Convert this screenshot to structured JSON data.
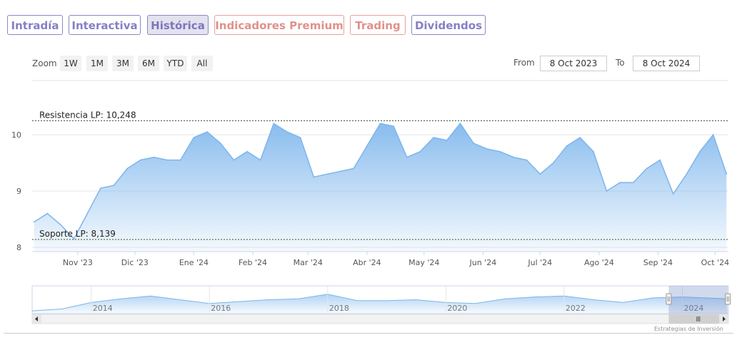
{
  "tabs": [
    {
      "label": "Intradía",
      "style": "normal"
    },
    {
      "label": "Interactiva",
      "style": "normal"
    },
    {
      "label": "Histórica",
      "style": "active"
    },
    {
      "label": "Indicadores Premium",
      "style": "premium"
    },
    {
      "label": "Trading",
      "style": "premium"
    },
    {
      "label": "Dividendos",
      "style": "normal"
    }
  ],
  "zoom": {
    "label": "Zoom",
    "buttons": [
      "1W",
      "1M",
      "3M",
      "6M",
      "YTD",
      "All"
    ]
  },
  "range": {
    "from_label": "From",
    "from_value": "8 Oct 2023",
    "to_label": "To",
    "to_value": "8 Oct 2024"
  },
  "credits": "Estrategias de Inversión",
  "colors": {
    "line": "#7cb5ec",
    "area_top": "#7cb5ec",
    "tab_border": "#8b87c4",
    "premium_border": "#e8a19c",
    "level_line": "#2f4f2f"
  },
  "chart_data": {
    "type": "area",
    "x": [
      "2023-10-09",
      "2023-10-16",
      "2023-10-23",
      "2023-10-30",
      "2023-11-06",
      "2023-11-13",
      "2023-11-20",
      "2023-11-27",
      "2023-12-04",
      "2023-12-11",
      "2023-12-18",
      "2023-12-25",
      "2024-01-01",
      "2024-01-08",
      "2024-01-15",
      "2024-01-22",
      "2024-01-29",
      "2024-02-05",
      "2024-02-12",
      "2024-02-19",
      "2024-02-26",
      "2024-03-04",
      "2024-03-11",
      "2024-03-18",
      "2024-03-25",
      "2024-04-01",
      "2024-04-08",
      "2024-04-15",
      "2024-04-22",
      "2024-04-29",
      "2024-05-06",
      "2024-05-13",
      "2024-05-20",
      "2024-05-27",
      "2024-06-03",
      "2024-06-10",
      "2024-06-17",
      "2024-06-24",
      "2024-07-01",
      "2024-07-08",
      "2024-07-15",
      "2024-07-22",
      "2024-07-29",
      "2024-08-05",
      "2024-08-12",
      "2024-08-19",
      "2024-08-26",
      "2024-09-02",
      "2024-09-09",
      "2024-09-16",
      "2024-09-23",
      "2024-09-30",
      "2024-10-07"
    ],
    "values": [
      8.45,
      8.6,
      8.4,
      8.15,
      8.6,
      9.05,
      9.1,
      9.4,
      9.55,
      9.6,
      9.55,
      9.55,
      9.95,
      10.05,
      9.85,
      9.55,
      9.7,
      9.55,
      10.2,
      10.05,
      9.95,
      9.25,
      9.3,
      9.35,
      9.4,
      9.8,
      10.2,
      10.15,
      9.6,
      9.7,
      9.95,
      9.9,
      10.2,
      9.85,
      9.75,
      9.7,
      9.6,
      9.55,
      9.3,
      9.5,
      9.8,
      9.95,
      9.7,
      9.0,
      9.15,
      9.15,
      9.4,
      9.55,
      8.95,
      9.3,
      9.7,
      10.0,
      9.3
    ],
    "ylim": [
      8,
      10.25
    ],
    "y_ticks": [
      8,
      9,
      10
    ],
    "x_tick_labels": [
      {
        "date": "2023-11-01",
        "label": "Nov '23"
      },
      {
        "date": "2023-12-01",
        "label": "Dic '23"
      },
      {
        "date": "2024-01-01",
        "label": "Ene '24"
      },
      {
        "date": "2024-02-01",
        "label": "Feb '24"
      },
      {
        "date": "2024-03-01",
        "label": "Mar '24"
      },
      {
        "date": "2024-04-01",
        "label": "Abr '24"
      },
      {
        "date": "2024-05-01",
        "label": "May '24"
      },
      {
        "date": "2024-06-01",
        "label": "Jun '24"
      },
      {
        "date": "2024-07-01",
        "label": "Jul '24"
      },
      {
        "date": "2024-08-01",
        "label": "Ago '24"
      },
      {
        "date": "2024-09-01",
        "label": "Sep '24"
      },
      {
        "date": "2024-10-01",
        "label": "Oct '24"
      }
    ],
    "resistance": {
      "label": "Resistencia LP: 10,248",
      "value": 10.248
    },
    "support": {
      "label": "Soporte LP: 8,139",
      "value": 8.139
    },
    "navigator": {
      "x": [
        2013.0,
        2013.5,
        2014.0,
        2014.5,
        2015.0,
        2015.5,
        2016.0,
        2016.5,
        2017.0,
        2017.5,
        2018.0,
        2018.5,
        2019.0,
        2019.5,
        2020.0,
        2020.5,
        2021.0,
        2021.5,
        2022.0,
        2022.5,
        2023.0,
        2023.5,
        2024.0,
        2024.75
      ],
      "values": [
        8.3,
        8.5,
        9.2,
        9.6,
        9.9,
        9.5,
        9.1,
        9.3,
        9.5,
        9.6,
        10.1,
        9.4,
        9.4,
        9.5,
        9.2,
        9.1,
        9.6,
        9.8,
        9.9,
        9.5,
        9.2,
        9.7,
        9.8,
        9.6
      ],
      "year_labels": [
        "2014",
        "2016",
        "2018",
        "2020",
        "2022",
        "2024"
      ],
      "selected_range": [
        "2023-10-08",
        "2024-10-08"
      ]
    }
  }
}
